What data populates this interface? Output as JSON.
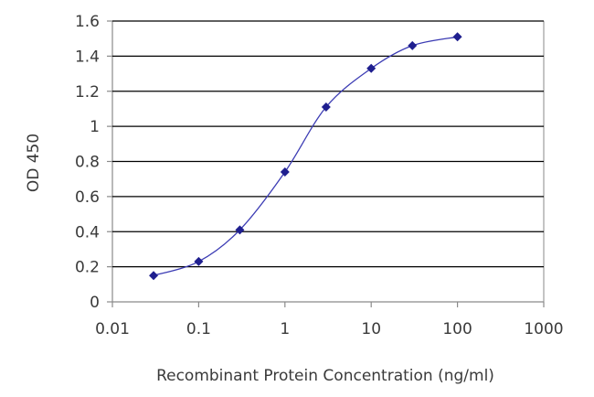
{
  "chart_data": {
    "type": "line",
    "title": "",
    "xlabel": "Recombinant Protein Concentration (ng/ml)",
    "ylabel": "OD 450",
    "x_scale": "log",
    "xlim": [
      0.01,
      1000
    ],
    "ylim": [
      0,
      1.6
    ],
    "x_ticks": [
      "0.01",
      "0.1",
      "1",
      "10",
      "100",
      "1000"
    ],
    "x_tick_values": [
      0.01,
      0.1,
      1,
      10,
      100,
      1000
    ],
    "y_ticks": [
      "0",
      "0.2",
      "0.4",
      "0.6",
      "0.8",
      "1",
      "1.2",
      "1.4",
      "1.6"
    ],
    "y_tick_values": [
      0,
      0.2,
      0.4,
      0.6,
      0.8,
      1.0,
      1.2,
      1.4,
      1.6
    ],
    "grid": "horizontal",
    "legend": "none",
    "series": [
      {
        "x": [
          0.03,
          0.1,
          0.3,
          1,
          3,
          10,
          30,
          100
        ],
        "y": [
          0.15,
          0.23,
          0.41,
          0.74,
          1.11,
          1.33,
          1.46,
          1.51
        ]
      }
    ],
    "colors": {
      "line": "#3c3cb4",
      "marker": "#1f1f8f",
      "grid": "#000000",
      "axis": "#8a8a8a",
      "text": "#3a3a3a"
    }
  }
}
